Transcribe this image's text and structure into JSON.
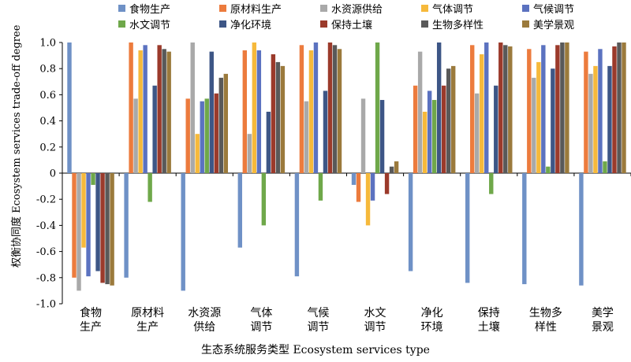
{
  "chart_data": {
    "type": "bar",
    "xlabel": "生态系统服务类型 Ecosystem services type",
    "ylabel": "权衡协同度  Ecosystem services trade-off degree",
    "ylim": [
      -1.0,
      1.0
    ],
    "yticks": [
      "-1.0",
      "-0.8",
      "-0.6",
      "-0.4",
      "-0.2",
      "0",
      "0.2",
      "0.4",
      "0.6",
      "0.8",
      "1.0"
    ],
    "legend_placement": "top",
    "categories": [
      [
        "食物",
        "生产"
      ],
      [
        "原材料",
        "生产"
      ],
      [
        "水资源",
        "供给"
      ],
      [
        "气体",
        "调节"
      ],
      [
        "气候",
        "调节"
      ],
      [
        "水文",
        "调节"
      ],
      [
        "净化",
        "环境"
      ],
      [
        "保持",
        "土壤"
      ],
      [
        "生物多",
        "样性"
      ],
      [
        "美学",
        "景观"
      ]
    ],
    "series": [
      {
        "name": "食物生产",
        "color": "#6f91c6",
        "values": [
          1.0,
          -0.8,
          -0.9,
          -0.57,
          -0.79,
          -0.09,
          -0.75,
          -0.84,
          -0.85,
          -0.86
        ]
      },
      {
        "name": "原材料生产",
        "color": "#ec7b3d",
        "values": [
          -0.8,
          1.0,
          0.57,
          0.94,
          0.98,
          -0.22,
          0.67,
          0.98,
          0.95,
          0.93
        ]
      },
      {
        "name": "水资源供给",
        "color": "#a9a9a9",
        "values": [
          -0.9,
          0.57,
          1.0,
          0.3,
          0.55,
          0.57,
          0.93,
          0.61,
          0.73,
          0.76
        ]
      },
      {
        "name": "气体调节",
        "color": "#f6b93b",
        "values": [
          -0.57,
          0.94,
          0.3,
          1.0,
          0.94,
          -0.4,
          0.47,
          0.91,
          0.85,
          0.82
        ]
      },
      {
        "name": "气候调节",
        "color": "#5b72c0",
        "values": [
          -0.79,
          0.98,
          0.55,
          0.94,
          1.0,
          -0.21,
          0.63,
          1.0,
          0.98,
          0.95
        ]
      },
      {
        "name": "水文调节",
        "color": "#6fa84a",
        "values": [
          -0.09,
          -0.22,
          0.57,
          -0.4,
          -0.21,
          1.0,
          0.56,
          -0.16,
          0.05,
          0.09
        ]
      },
      {
        "name": "净化环境",
        "color": "#3d5686",
        "values": [
          -0.75,
          0.67,
          0.93,
          0.47,
          0.63,
          0.56,
          1.0,
          0.67,
          0.8,
          0.82
        ]
      },
      {
        "name": "保持土壤",
        "color": "#9b3a2b",
        "values": [
          -0.84,
          0.98,
          0.61,
          0.91,
          1.0,
          -0.16,
          0.67,
          1.0,
          0.98,
          0.97
        ]
      },
      {
        "name": "生物多样性",
        "color": "#595959",
        "values": [
          -0.85,
          0.95,
          0.73,
          0.85,
          0.98,
          0.05,
          0.8,
          0.98,
          1.0,
          1.0
        ]
      },
      {
        "name": "美学景观",
        "color": "#9b7a3c",
        "values": [
          -0.86,
          0.93,
          0.76,
          0.82,
          0.95,
          0.09,
          0.82,
          0.97,
          1.0,
          1.0
        ]
      }
    ]
  }
}
